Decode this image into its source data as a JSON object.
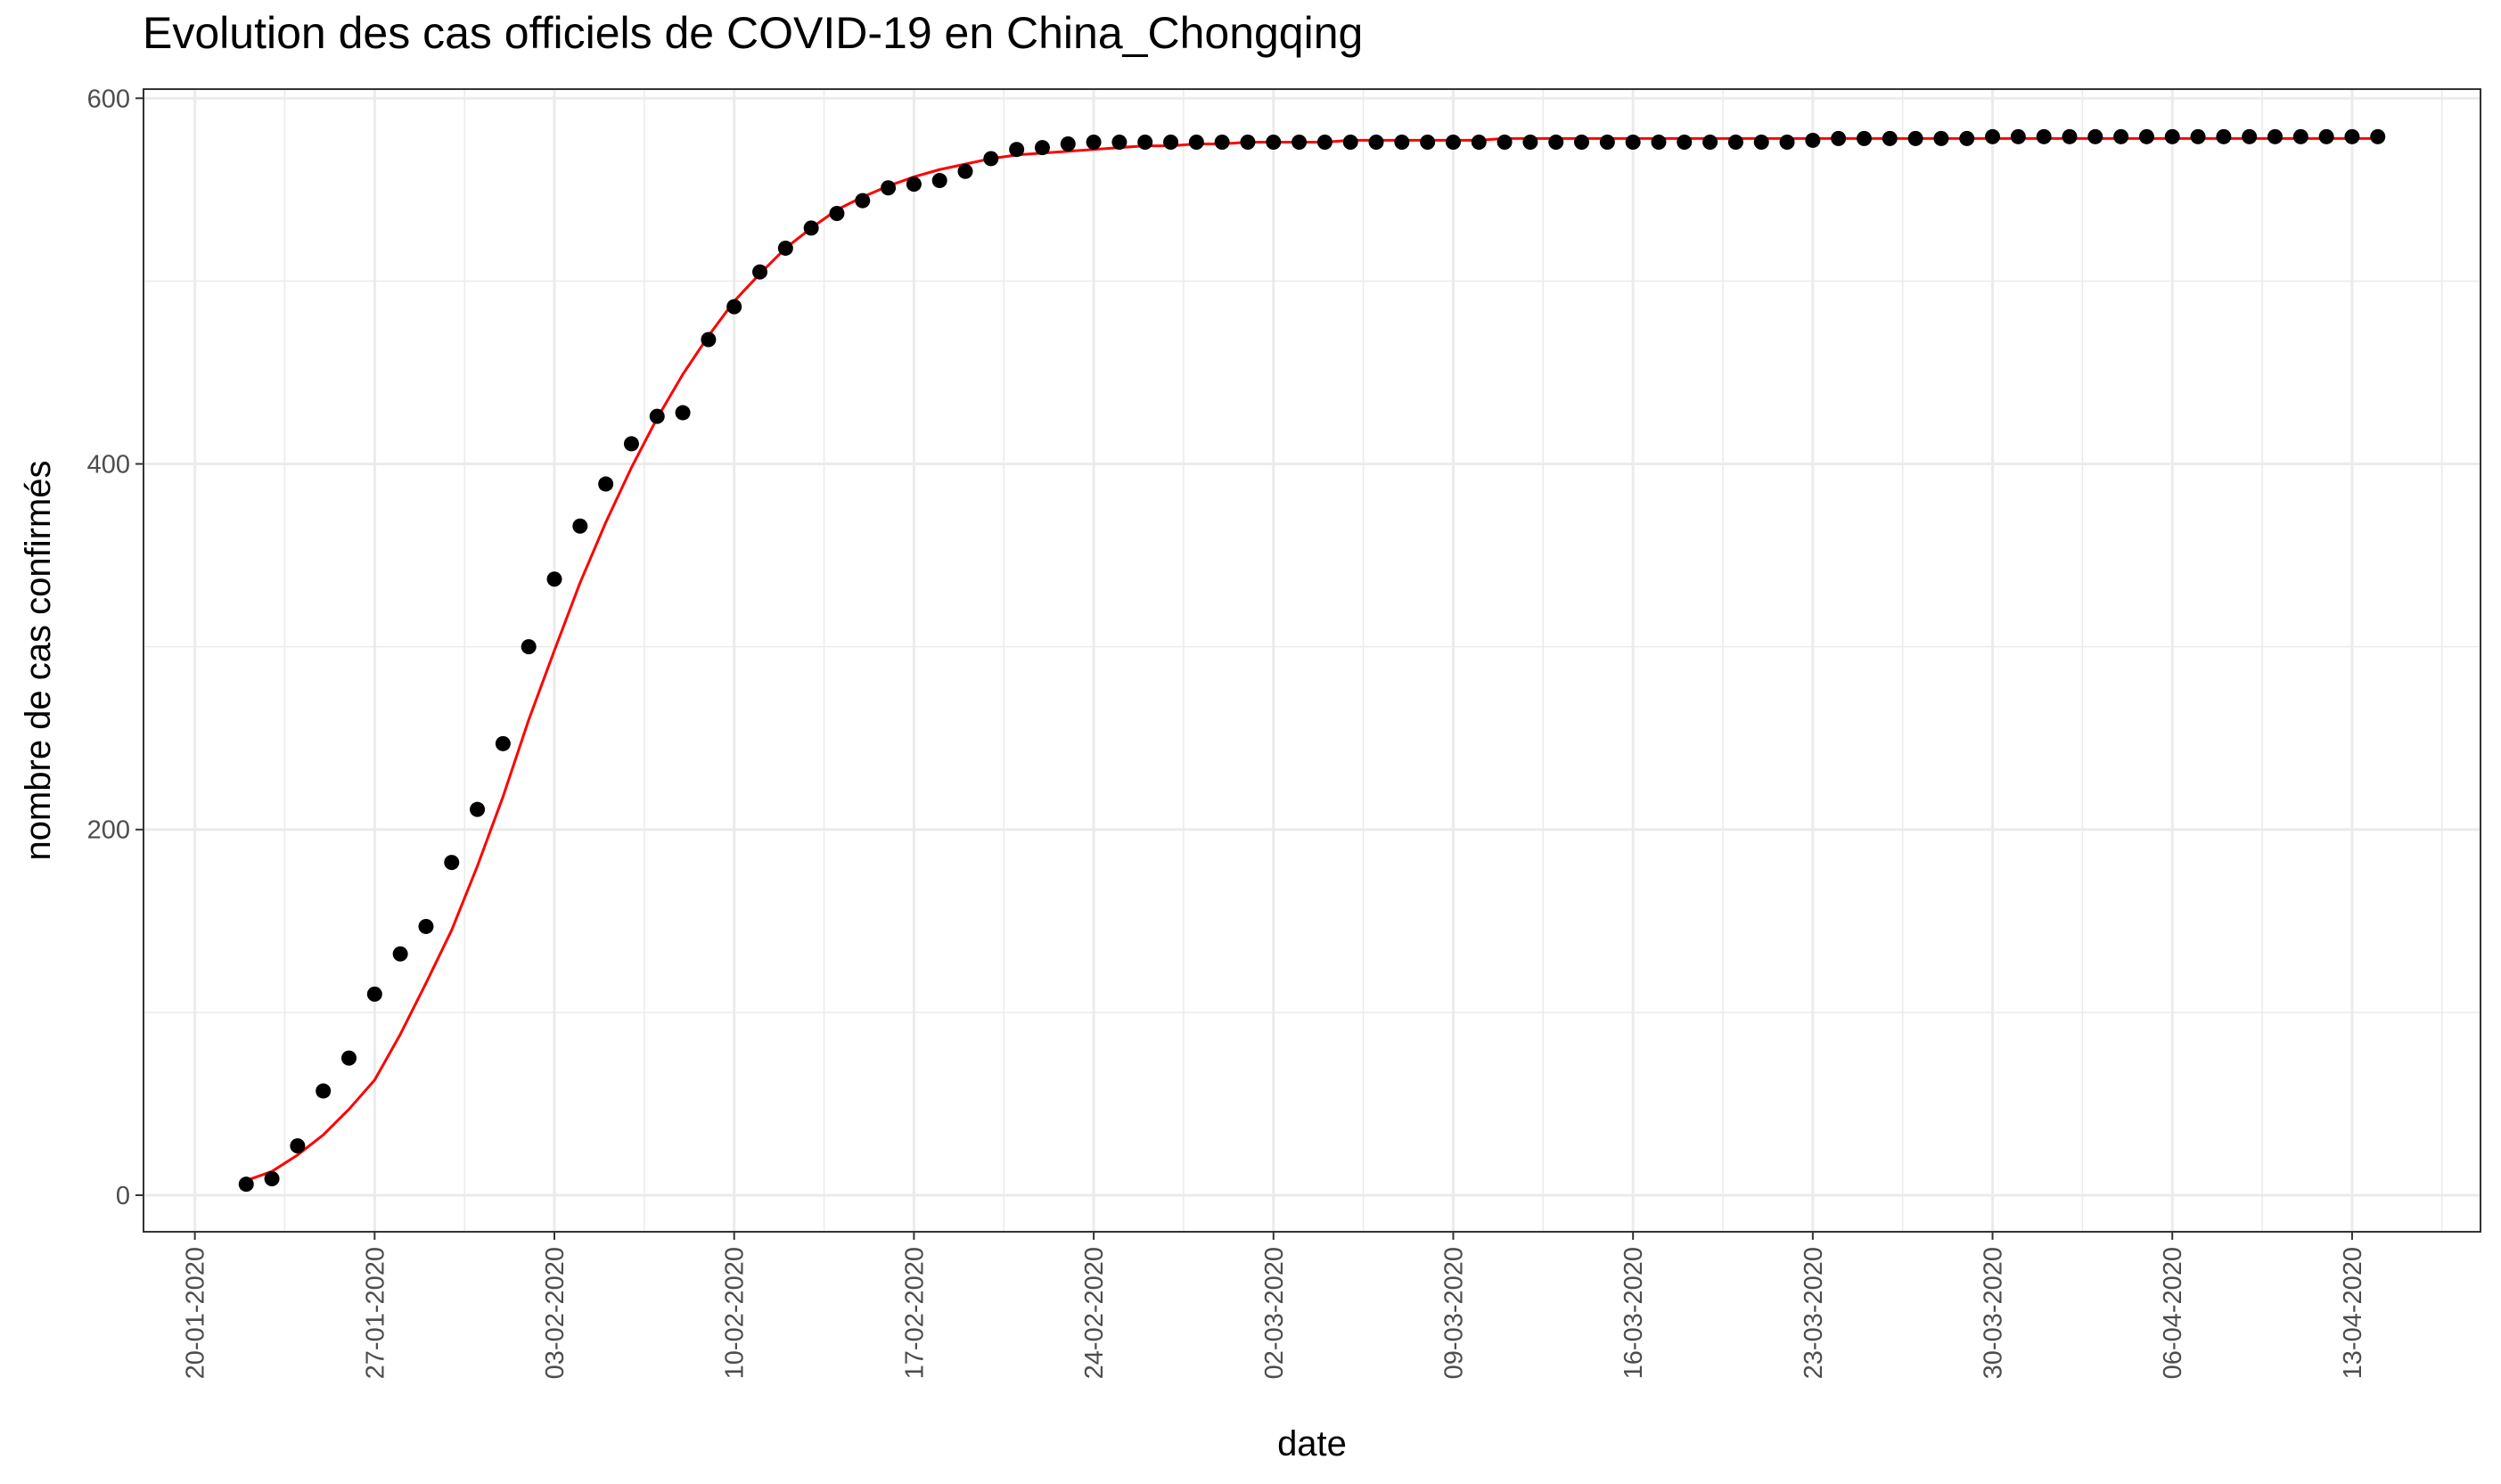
{
  "chart_data": {
    "type": "scatter",
    "title": "Evolution des cas officiels de COVID-19 en China_Chongqing",
    "xlabel": "date",
    "ylabel": "nombre de cas confirmés",
    "x_start": "2020-01-22",
    "xlim": [
      "2020-01-18",
      "2020-04-18"
    ],
    "ylim": [
      -20,
      605
    ],
    "y_ticks": [
      0,
      200,
      400,
      600
    ],
    "y_minor_ticks": [
      100,
      300,
      500
    ],
    "x_ticks": [
      "20-01-2020",
      "27-01-2020",
      "03-02-2020",
      "10-02-2020",
      "17-02-2020",
      "24-02-2020",
      "02-03-2020",
      "09-03-2020",
      "16-03-2020",
      "23-03-2020",
      "30-03-2020",
      "06-04-2020",
      "13-04-2020"
    ],
    "grid": true,
    "series": [
      {
        "style": "points",
        "color": "#000000",
        "values": [
          6,
          9,
          27,
          57,
          75,
          110,
          132,
          147,
          182,
          211,
          247,
          300,
          337,
          366,
          389,
          411,
          426,
          428,
          468,
          486,
          505,
          518,
          529,
          537,
          544,
          551,
          553,
          555,
          560,
          567,
          572,
          573,
          575,
          576,
          576,
          576,
          576,
          576,
          576,
          576,
          576,
          576,
          576,
          576,
          576,
          576,
          576,
          576,
          576,
          576,
          576,
          576,
          576,
          576,
          576,
          576,
          576,
          576,
          576,
          576,
          576,
          577,
          578,
          578,
          578,
          578,
          578,
          578,
          579,
          579,
          579,
          579,
          579,
          579,
          579,
          579,
          579,
          579,
          579,
          579,
          579,
          579,
          579,
          579
        ]
      },
      {
        "style": "line",
        "color": "#ff0000",
        "model": "logistic fit",
        "values": [
          8,
          13,
          22,
          33,
          47,
          63,
          88,
          116,
          145,
          180,
          218,
          260,
          298,
          335,
          368,
          398,
          425,
          449,
          470,
          489,
          504,
          518,
          529,
          539,
          546,
          552,
          557,
          561,
          564,
          567,
          569,
          570,
          571,
          572,
          573,
          574,
          574,
          575,
          575,
          576,
          576,
          576,
          576,
          577,
          577,
          577,
          577,
          577,
          577,
          578,
          578,
          578,
          578,
          578,
          578,
          578,
          578,
          578,
          578,
          578,
          578,
          578,
          578,
          578,
          578,
          578,
          578,
          578,
          578,
          578,
          578,
          578,
          578,
          578,
          578,
          578,
          578,
          578,
          578,
          578,
          578,
          578,
          578,
          578
        ]
      }
    ]
  }
}
